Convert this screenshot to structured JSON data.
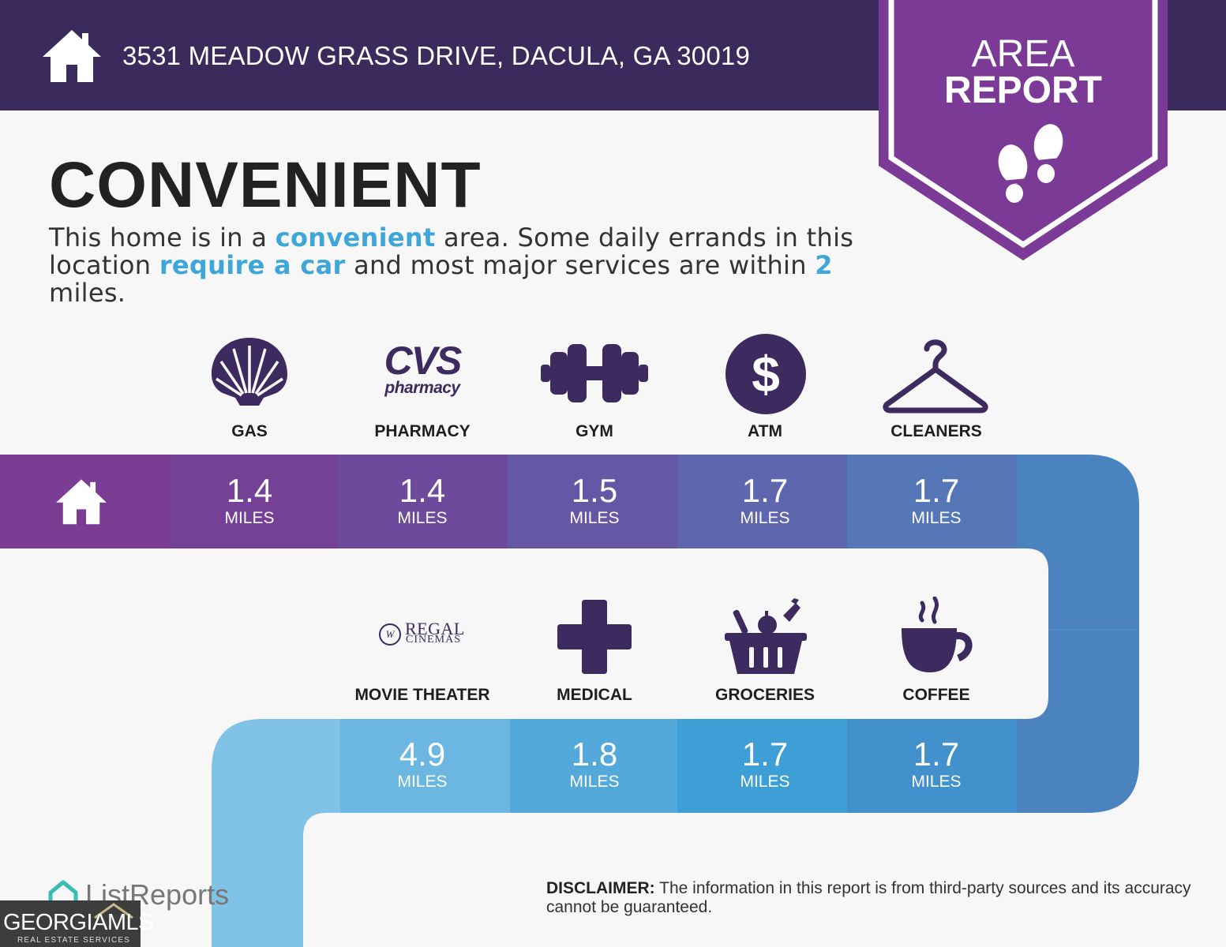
{
  "header": {
    "address": "3531 MEADOW GRASS DRIVE, DACULA, GA 30019",
    "badge_line1": "AREA",
    "badge_line2": "REPORT"
  },
  "main": {
    "title": "CONVENIENT",
    "subtitle": {
      "p1": "This home is in a ",
      "h1": "convenient",
      "p2": " area. Some daily errands in this location ",
      "h2": "require a car",
      "p3": " and most major services are within ",
      "h3": "2",
      "p4": " miles."
    }
  },
  "row1": [
    {
      "label": "GAS",
      "value": "1.4",
      "unit": "MILES",
      "icon": "shell-icon"
    },
    {
      "label": "PHARMACY",
      "value": "1.4",
      "unit": "MILES",
      "icon": "cvs-pharmacy-logo",
      "logo_top": "CVS",
      "logo_bottom": "pharmacy"
    },
    {
      "label": "GYM",
      "value": "1.5",
      "unit": "MILES",
      "icon": "dumbbell-icon"
    },
    {
      "label": "ATM",
      "value": "1.7",
      "unit": "MILES",
      "icon": "dollar-icon",
      "glyph": "$"
    },
    {
      "label": "CLEANERS",
      "value": "1.7",
      "unit": "MILES",
      "icon": "hanger-icon"
    }
  ],
  "row2": [
    {
      "label": "MOVIE THEATER",
      "value": "4.9",
      "unit": "MILES",
      "icon": "regal-cinemas-logo",
      "logo_top": "REGAL",
      "logo_bottom": "CINEMAS"
    },
    {
      "label": "MEDICAL",
      "value": "1.8",
      "unit": "MILES",
      "icon": "medical-cross-icon"
    },
    {
      "label": "GROCERIES",
      "value": "1.7",
      "unit": "MILES",
      "icon": "grocery-basket-icon"
    },
    {
      "label": "COFFEE",
      "value": "1.7",
      "unit": "MILES",
      "icon": "coffee-cup-icon"
    }
  ],
  "footer": {
    "disclaimer_label": "DISCLAIMER:",
    "disclaimer_text": " The information in this report is from third-party sources and its accuracy cannot be guaranteed.",
    "brand": "ListReports",
    "mls_name": "GEORGIAMLS",
    "mls_sub": "REAL ESTATE SERVICES"
  },
  "colors": {
    "header_bg": "#3b2a5c",
    "badge": "#7b3a96",
    "highlight": "#3ea6d8",
    "icon": "#3d2a5e"
  }
}
